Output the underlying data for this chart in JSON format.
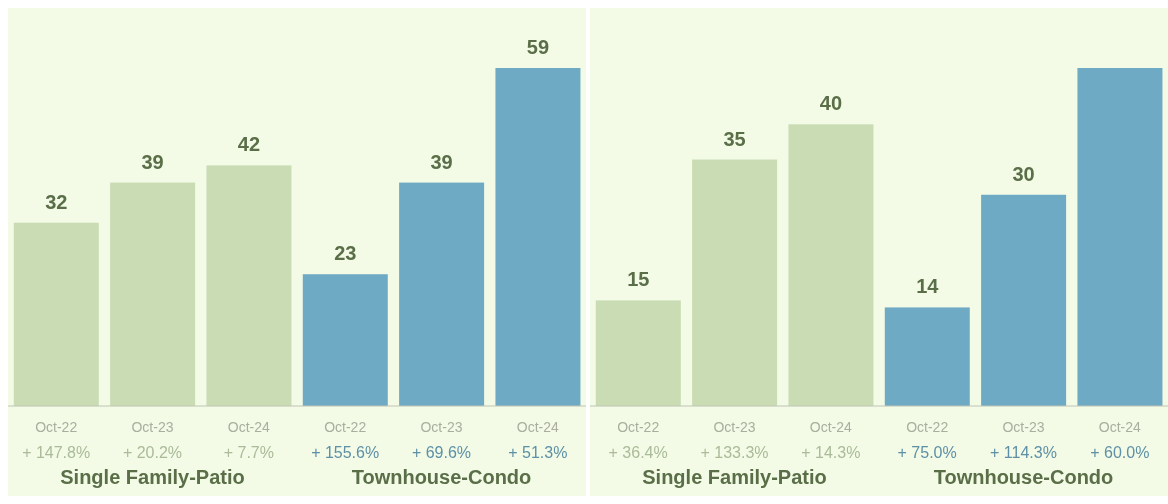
{
  "chart_data": [
    {
      "type": "bar",
      "categories": [
        "Oct-22",
        "Oct-23",
        "Oct-24",
        "Oct-22",
        "Oct-23",
        "Oct-24"
      ],
      "legend": "bottom",
      "annotations": [
        "+ 147.8%",
        "+ 20.2%",
        "+ 7.7%",
        "+ 155.6%",
        "+ 69.6%",
        "+ 51.3%"
      ],
      "series": [
        {
          "name": "Single Family-Patio",
          "color": "#c9dcb4",
          "values": [
            32,
            39,
            42,
            null,
            null,
            null
          ],
          "value_labels": [
            "32",
            "39",
            "42",
            null,
            null,
            null
          ]
        },
        {
          "name": "Townhouse-Condo",
          "color": "#6faac4",
          "values": [
            null,
            null,
            null,
            23,
            39,
            59
          ],
          "value_labels": [
            null,
            null,
            null,
            "23",
            "39",
            "59"
          ]
        }
      ]
    },
    {
      "type": "bar",
      "categories": [
        "Oct-22",
        "Oct-23",
        "Oct-24",
        "Oct-22",
        "Oct-23",
        "Oct-24"
      ],
      "legend": "bottom",
      "annotations": [
        "+ 36.4%",
        "+ 133.3%",
        "+ 14.3%",
        "+ 75.0%",
        "+ 114.3%",
        "+ 60.0%"
      ],
      "series": [
        {
          "name": "Single Family-Patio",
          "color": "#c9dcb4",
          "values": [
            15,
            35,
            40,
            null,
            null,
            null
          ],
          "value_labels": [
            "15",
            "35",
            "40",
            null,
            null,
            null
          ]
        },
        {
          "name": "Townhouse-Condo",
          "color": "#6faac4",
          "values": [
            null,
            null,
            null,
            14,
            30,
            48
          ],
          "value_labels": [
            null,
            null,
            null,
            "14",
            "30",
            null
          ]
        }
      ]
    }
  ]
}
